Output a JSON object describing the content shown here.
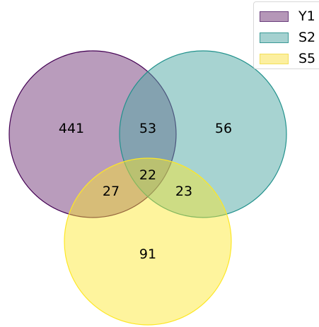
{
  "chart_data": {
    "type": "venn",
    "sets": [
      {
        "name": "Y1",
        "fill": "#b597b8",
        "stroke": "#440154"
      },
      {
        "name": "S2",
        "fill": "#a5d1d0",
        "stroke": "#21918c"
      },
      {
        "name": "S5",
        "fill": "#fcef9f",
        "stroke": "#fde725"
      }
    ],
    "regions": [
      {
        "sets": [
          "Y1"
        ],
        "value": "441"
      },
      {
        "sets": [
          "S2"
        ],
        "value": "56"
      },
      {
        "sets": [
          "S5"
        ],
        "value": "91"
      },
      {
        "sets": [
          "Y1",
          "S2"
        ],
        "value": "53"
      },
      {
        "sets": [
          "Y1",
          "S5"
        ],
        "value": "27"
      },
      {
        "sets": [
          "S2",
          "S5"
        ],
        "value": "23"
      },
      {
        "sets": [
          "Y1",
          "S2",
          "S5"
        ],
        "value": "22"
      }
    ],
    "legend_position": "top-right"
  }
}
